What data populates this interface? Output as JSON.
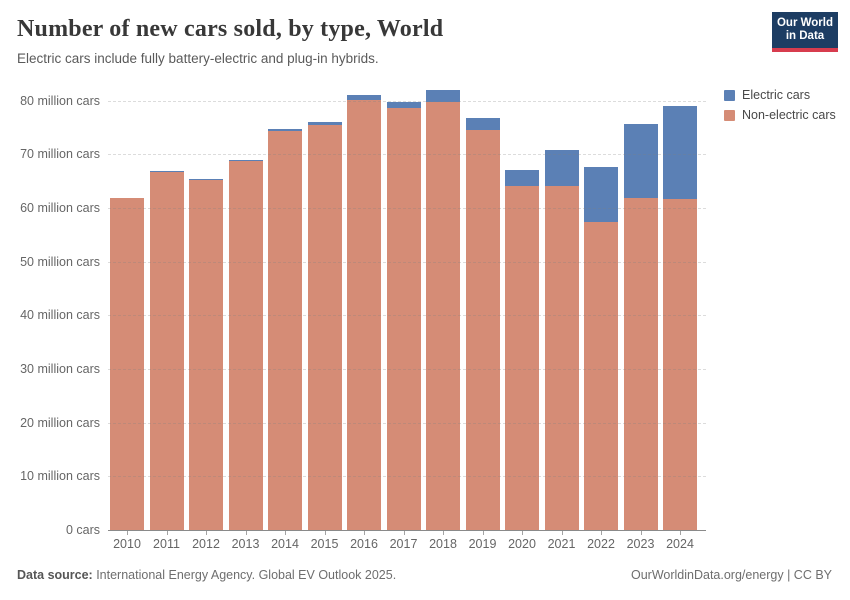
{
  "header": {
    "title": "Number of new cars sold, by type, World",
    "subtitle": "Electric cars include fully battery-electric and plug-in hybrids.",
    "logo": {
      "line1": "Our World",
      "line2": "in Data",
      "bg_color": "#1d3d63",
      "accent_color": "#d73c4e"
    }
  },
  "legend": {
    "items": [
      {
        "label": "Electric cars",
        "color": "#5b80b5"
      },
      {
        "label": "Non-electric cars",
        "color": "#d58c76"
      }
    ]
  },
  "chart_data": {
    "type": "bar",
    "stacked": true,
    "title": "Number of new cars sold, by type, World",
    "xlabel": "",
    "ylabel": "",
    "unit": "million cars",
    "ylim": [
      0,
      83
    ],
    "grid": "horizontal-dashed",
    "legend_position": "top-right",
    "categories": [
      "2010",
      "2011",
      "2012",
      "2013",
      "2014",
      "2015",
      "2016",
      "2017",
      "2018",
      "2019",
      "2020",
      "2021",
      "2022",
      "2023",
      "2024"
    ],
    "series": [
      {
        "name": "Electric cars",
        "color": "#5b80b5",
        "values": [
          0.01,
          0.06,
          0.13,
          0.2,
          0.32,
          0.55,
          0.85,
          1.2,
          2.2,
          2.2,
          2.9,
          6.6,
          10.2,
          13.8,
          17.4
        ]
      },
      {
        "name": "Non-electric cars",
        "color": "#d58c76",
        "values": [
          62.0,
          67.0,
          65.4,
          68.9,
          74.6,
          75.7,
          80.3,
          78.7,
          79.9,
          74.7,
          64.3,
          64.3,
          57.6,
          62.1,
          61.8
        ]
      }
    ],
    "totals": [
      62.0,
      67.1,
      65.5,
      69.1,
      74.9,
      76.3,
      81.2,
      79.9,
      82.1,
      76.9,
      67.2,
      70.9,
      67.8,
      75.9,
      79.2
    ],
    "yticks": [
      {
        "value": 0,
        "label": "0 cars"
      },
      {
        "value": 10,
        "label": "10 million cars"
      },
      {
        "value": 20,
        "label": "20 million cars"
      },
      {
        "value": 30,
        "label": "30 million cars"
      },
      {
        "value": 40,
        "label": "40 million cars"
      },
      {
        "value": 50,
        "label": "50 million cars"
      },
      {
        "value": 60,
        "label": "60 million cars"
      },
      {
        "value": 70,
        "label": "70 million cars"
      },
      {
        "value": 80,
        "label": "80 million cars"
      }
    ]
  },
  "footer": {
    "source_label": "Data source:",
    "source_text": " International Energy Agency. Global EV Outlook 2025.",
    "right_text": "OurWorldinData.org/energy | CC BY"
  }
}
